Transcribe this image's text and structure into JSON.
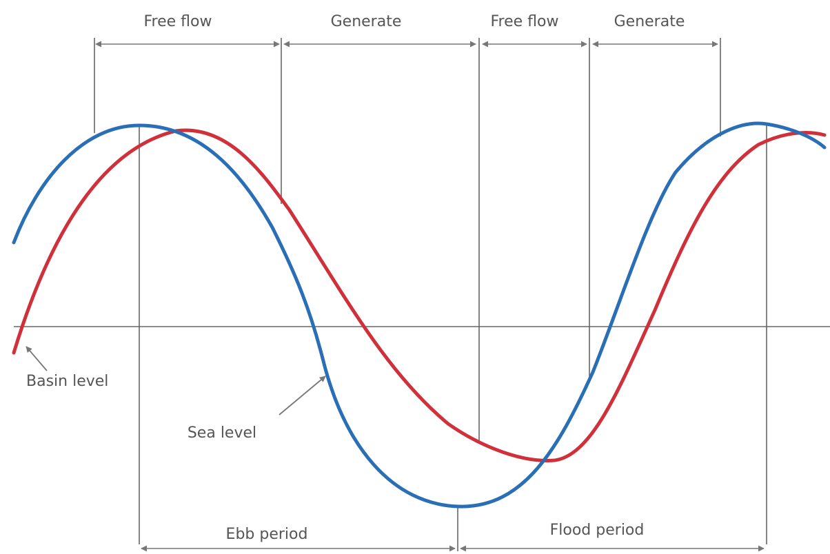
{
  "labels": {
    "free_flow_1": "Free flow",
    "generate_1": "Generate",
    "free_flow_2": "Free flow",
    "generate_2": "Generate",
    "basin_level": "Basin level",
    "sea_level": "Sea level",
    "ebb_period": "Ebb period",
    "flood_period": "Flood period"
  },
  "colors": {
    "sea_level": "#2a6fb5",
    "basin_level": "#d0303a",
    "lines": "#666666",
    "text": "#555555"
  }
}
